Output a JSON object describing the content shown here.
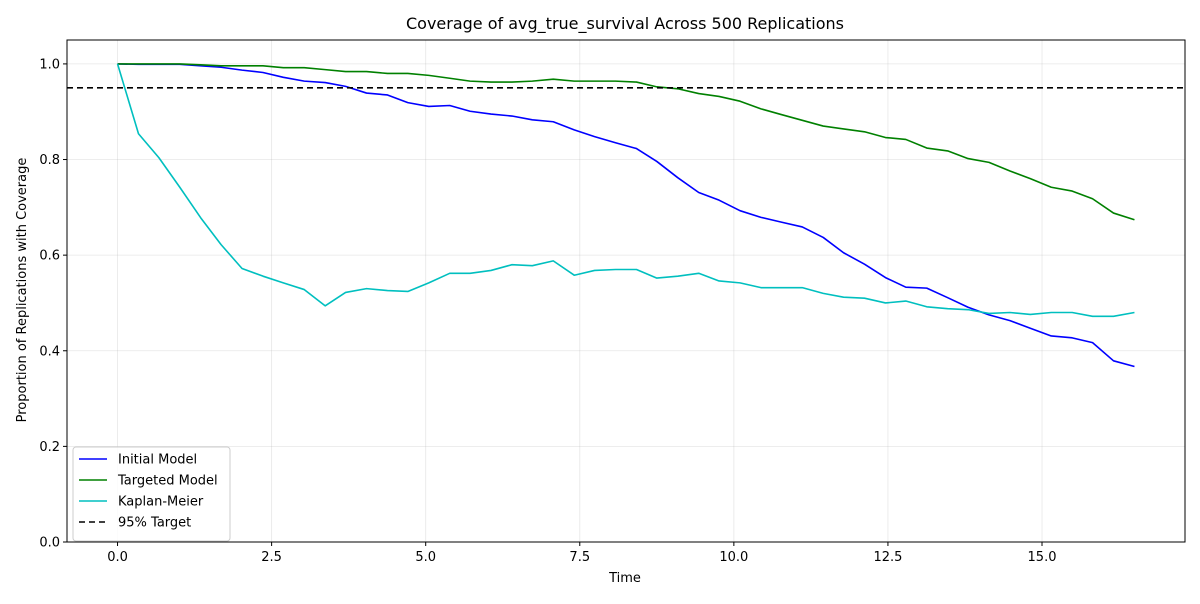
{
  "chart_data": {
    "type": "line",
    "title": "Coverage of avg_true_survival Across 500 Replications",
    "xlabel": "Time",
    "ylabel": "Proportion of Replications with Coverage",
    "xlim": [
      -0.82,
      17.32
    ],
    "ylim": [
      0.0,
      1.05
    ],
    "xticks": [
      0.0,
      2.5,
      5.0,
      7.5,
      10.0,
      12.5,
      15.0
    ],
    "xtick_labels": [
      "0.0",
      "2.5",
      "5.0",
      "7.5",
      "10.0",
      "12.5",
      "15.0"
    ],
    "yticks": [
      0.0,
      0.2,
      0.4,
      0.6,
      0.8,
      1.0
    ],
    "ytick_labels": [
      "0.0",
      "0.2",
      "0.4",
      "0.6",
      "0.8",
      "1.0"
    ],
    "grid": true,
    "legend_position": "lower-left",
    "x": [
      0.0,
      0.34,
      0.67,
      1.01,
      1.35,
      1.68,
      2.02,
      2.36,
      2.69,
      3.03,
      3.37,
      3.7,
      4.04,
      4.38,
      4.71,
      5.05,
      5.39,
      5.72,
      6.06,
      6.4,
      6.73,
      7.07,
      7.41,
      7.74,
      8.08,
      8.42,
      8.75,
      9.09,
      9.43,
      9.76,
      10.1,
      10.44,
      10.77,
      11.11,
      11.45,
      11.78,
      12.12,
      12.46,
      12.79,
      13.13,
      13.47,
      13.8,
      14.14,
      14.48,
      14.81,
      15.15,
      15.49,
      15.82,
      16.16,
      16.5
    ],
    "series": [
      {
        "name": "Initial Model",
        "color": "#0000ff",
        "values": [
          1.0,
          0.999,
          0.999,
          0.999,
          0.996,
          0.993,
          0.987,
          0.982,
          0.972,
          0.964,
          0.961,
          0.953,
          0.939,
          0.935,
          0.919,
          0.911,
          0.913,
          0.901,
          0.895,
          0.891,
          0.883,
          0.879,
          0.862,
          0.848,
          0.835,
          0.823,
          0.796,
          0.762,
          0.731,
          0.715,
          0.693,
          0.679,
          0.669,
          0.659,
          0.637,
          0.605,
          0.581,
          0.553,
          0.533,
          0.531,
          0.511,
          0.491,
          0.475,
          0.463,
          0.447,
          0.431,
          0.427,
          0.417,
          0.379,
          0.367
        ]
      },
      {
        "name": "Targeted Model",
        "color": "#008000",
        "values": [
          1.0,
          1.0,
          1.0,
          1.0,
          0.998,
          0.996,
          0.996,
          0.996,
          0.992,
          0.992,
          0.988,
          0.984,
          0.984,
          0.98,
          0.98,
          0.976,
          0.97,
          0.964,
          0.962,
          0.962,
          0.964,
          0.968,
          0.964,
          0.964,
          0.964,
          0.962,
          0.952,
          0.948,
          0.938,
          0.932,
          0.922,
          0.906,
          0.894,
          0.882,
          0.87,
          0.864,
          0.858,
          0.846,
          0.842,
          0.824,
          0.818,
          0.802,
          0.794,
          0.776,
          0.76,
          0.742,
          0.734,
          0.718,
          0.688,
          0.674
        ]
      },
      {
        "name": "Kaplan-Meier",
        "color": "#00bfbf",
        "values": [
          1.0,
          0.854,
          0.804,
          0.742,
          0.678,
          0.622,
          0.572,
          0.556,
          0.542,
          0.528,
          0.494,
          0.522,
          0.53,
          0.526,
          0.524,
          0.542,
          0.562,
          0.562,
          0.568,
          0.58,
          0.578,
          0.588,
          0.558,
          0.568,
          0.57,
          0.57,
          0.552,
          0.556,
          0.562,
          0.546,
          0.542,
          0.532,
          0.532,
          0.532,
          0.52,
          0.512,
          0.51,
          0.5,
          0.504,
          0.492,
          0.488,
          0.486,
          0.478,
          0.48,
          0.476,
          0.48,
          0.48,
          0.472,
          0.472,
          0.48
        ]
      }
    ],
    "reference_line": {
      "name": "95% Target",
      "y": 0.95,
      "color": "#000000",
      "style": "dashed"
    }
  }
}
